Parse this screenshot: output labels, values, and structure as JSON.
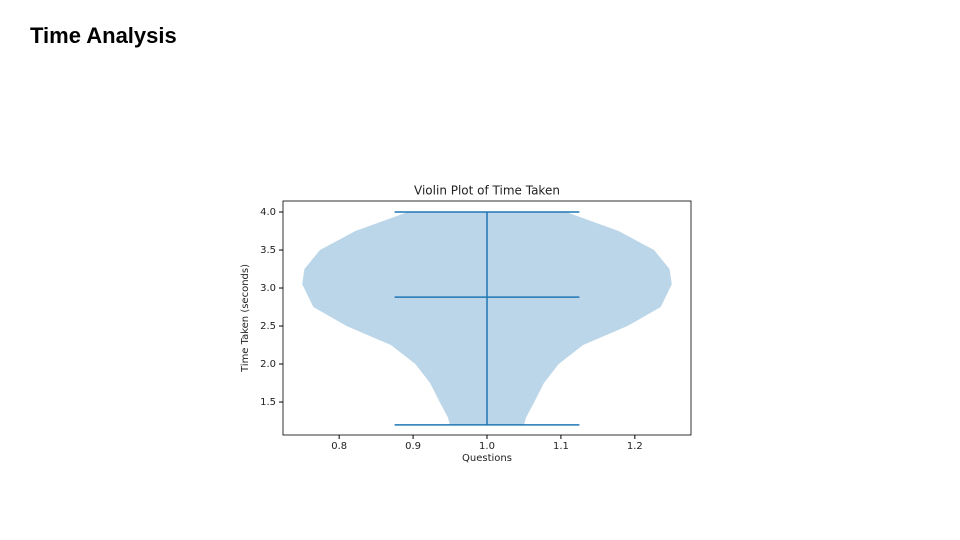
{
  "page_title": "Time Analysis",
  "chart_data": {
    "type": "violin",
    "title": "Violin Plot of Time Taken",
    "x_label": "Questions",
    "y_label": "Time Taken (seconds)",
    "position": 1.0,
    "color": "#1f77b4",
    "violin": {
      "y": [
        4.0,
        3.75,
        3.5,
        3.25,
        3.05,
        2.75,
        2.5,
        2.25,
        2.0,
        1.75,
        1.5,
        1.3,
        1.2
      ],
      "half_width": [
        0.107,
        0.178,
        0.226,
        0.247,
        0.25,
        0.235,
        0.19,
        0.13,
        0.097,
        0.077,
        0.064,
        0.053,
        0.05
      ]
    },
    "min": 1.2,
    "max": 4.0,
    "mean": 2.88,
    "xlim": [
      0.724,
      1.276
    ],
    "ylim": [
      1.066,
      4.145
    ],
    "xticks": [
      0.8,
      0.9,
      {
        "value": 1.0,
        "label": "1.0"
      },
      1.1,
      1.2
    ],
    "yticks": [
      1.5,
      {
        "value": 2.0,
        "label": "2.0"
      },
      2.5,
      {
        "value": 3.0,
        "label": "3.0"
      },
      3.5,
      {
        "value": 4.0,
        "label": "4.0"
      }
    ]
  }
}
